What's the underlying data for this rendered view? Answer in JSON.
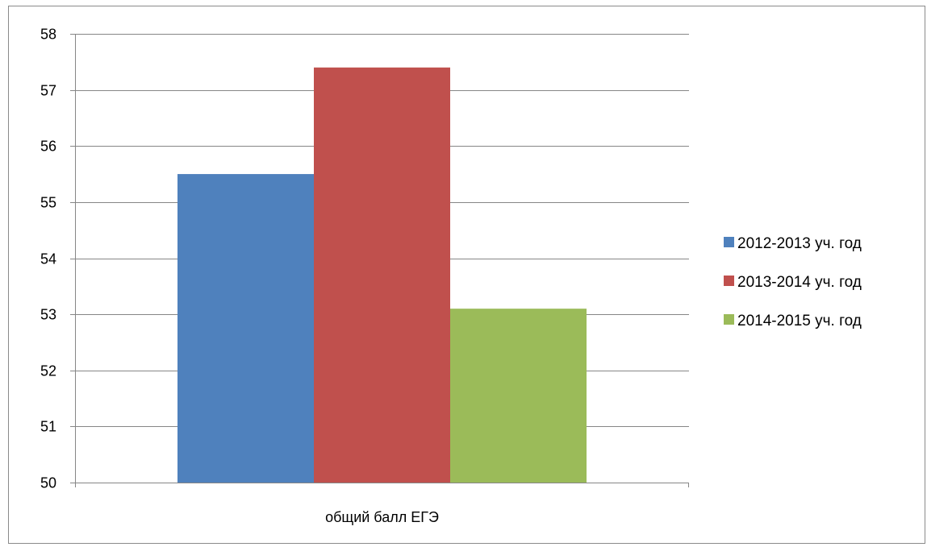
{
  "chart_data": {
    "type": "bar",
    "title": "",
    "xlabel": "",
    "ylabel": "",
    "categories": [
      "общий балл ЕГЭ"
    ],
    "series": [
      {
        "name": "2012-2013 уч. год",
        "values": [
          55.5
        ],
        "color": "#4f81bd"
      },
      {
        "name": "2013-2014 уч. год",
        "values": [
          57.4
        ],
        "color": "#c0504d"
      },
      {
        "name": "2014-2015 уч. год",
        "values": [
          53.1
        ],
        "color": "#9bbb59"
      }
    ],
    "ylim": [
      50,
      58
    ],
    "yticks": [
      "50",
      "51",
      "52",
      "53",
      "54",
      "55",
      "56",
      "57",
      "58"
    ],
    "grid": true,
    "legend_position": "right"
  }
}
